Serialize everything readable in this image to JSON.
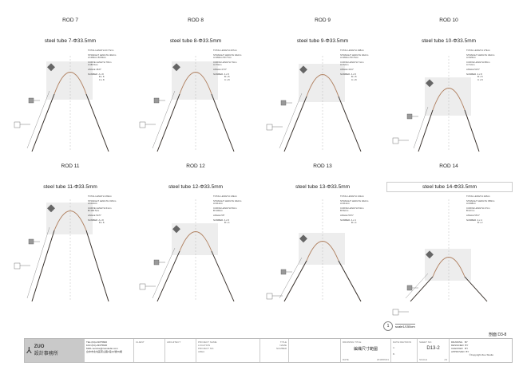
{
  "rods": [
    {
      "label": "ROD 7",
      "subtitle": "steel tube 7-Φ33.5mm",
      "info": [
        "TOTAL LENGTH 217.5cm",
        "STRAIGHT LENGTH 402cm",
        "A=466cm B=82cm",
        "CURVE LENGTH 78cm",
        "C=80.5cm",
        "ANGLE 48.8°",
        "NUMBER  A x 8",
        "B x 8",
        "C x 8"
      ]
    },
    {
      "label": "ROD 8",
      "subtitle": "steel tube 8-Φ33.5mm",
      "info": [
        "TOTAL LENGTH 207cm",
        "STRAIGHT LENGTH 402cm",
        "A=466cm B=77cm",
        "CURVE LENGTH 79cm",
        "C=79cm",
        "ANGLE 47.8°",
        "NUMBER  A x 8",
        "B x 8",
        "C x 8"
      ]
    },
    {
      "label": "ROD 9",
      "subtitle": "steel tube 9-Φ33.5mm",
      "info": [
        "TOTAL LENGTH 198cm",
        "STRAIGHT LENGTH 402cm",
        "A=466cm B=74cm",
        "CURVE LENGTH 71cm",
        "C=72cm",
        "ANGLE 46.9°",
        "NUMBER  A x 8",
        "B x 8",
        "C x 8"
      ]
    },
    {
      "label": "ROD 10",
      "subtitle": "steel tube 10-Φ33.5mm",
      "info": [
        "TOTAL LENGTH 179cm",
        "STRAIGHT LENGTH 402cm",
        "A=326cm",
        "CURVE LENGTH 88cm",
        "C=72cm",
        "ANGLE 50.5°",
        "NUMBER  A x 8",
        "B x 8",
        "C x 8"
      ]
    },
    {
      "label": "ROD 11",
      "subtitle": "steel tube 11-Φ33.5mm",
      "info": [
        "TOTAL LENGTH 169cm",
        "STRAIGHT LENGTH 315cm",
        "A=212cm",
        "CURVE LENGTH 61cm",
        "B=180.5cm",
        "ANGLE 50.5°",
        "NUMBER  A x 8",
        "B x 8"
      ]
    },
    {
      "label": "ROD 12",
      "subtitle": "steel tube 12-Φ33.5mm",
      "info": [
        "TOTAL LENGTH 149cm",
        "STRAIGHT LENGTH 402cm",
        "A=212cm",
        "CURVE LENGTH 56cm",
        "B=100cm",
        "ANGLE 55°",
        "NUMBER  A x 8",
        "B x 4"
      ]
    },
    {
      "label": "ROD 13",
      "subtitle": "steel tube 13-Φ33.5mm",
      "info": [
        "TOTAL LENGTH 132cm",
        "STRAIGHT LENGTH 402cm",
        "A=212cm",
        "CURVE LENGTH 53cm",
        "B=52cm",
        "ANGLE 55.5°",
        "NUMBER  A x 4",
        "B x 4"
      ]
    },
    {
      "label": "ROD 14",
      "subtitle": "steel tube 14-Φ33.5mm",
      "info": [
        "TOTAL LENGTH 118cm",
        "STRAIGHT LENGTH 358cm",
        "A=208cm",
        "CURVE LENGTH 47cm",
        "B=47cm",
        "ANGLE 55.6°",
        "NUMBER  A x 4",
        "B x 2"
      ]
    }
  ],
  "scale": {
    "number": "1",
    "text": "scale1/150cm"
  },
  "sheet_ref": "剖面 D3-8",
  "title_block": {
    "firm": "ZUO",
    "firm_sub": "設計事務所",
    "contact": [
      "TEL:(04)-23375820",
      "FAX:(04)-23375820",
      "MAIL:service@zuostudio.com",
      "台中市北屯區東山路1段(2)號(5)樓"
    ],
    "client": "CLIENT",
    "architect": "ARCHITECT",
    "project": [
      "PROJECT NAME",
      "LOCATION",
      "PROJECT NO.",
      "AREA"
    ],
    "title_fields": [
      "TITLE",
      "NAME",
      "NUMBER"
    ],
    "drawing_title_label": "DRAWING TITLE",
    "drawing_title": "編織尺寸範圖",
    "date_label": "DATE",
    "date": "2018/06/01",
    "date_revision": "DATE REVISION",
    "rev_a": "A.",
    "rev_b": "B.",
    "sheet_no_label": "SHEET NO.",
    "sheet_no": "D13-2",
    "scale_label": "SCALE",
    "scale_value": "A3",
    "roles": [
      "DRAWING   BY",
      "DESIGNED  BY",
      "CHECKED   BY",
      "APPROVED  BY"
    ],
    "copyright": "©Copyright Zuo Studio"
  },
  "colors": {
    "curve": "#b08060",
    "line": "#333333",
    "hatch": "#e6e6e6"
  }
}
